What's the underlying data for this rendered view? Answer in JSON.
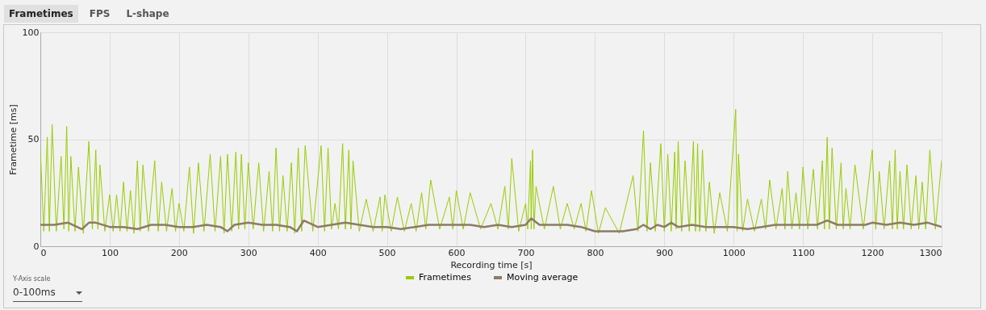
{
  "chart_data": {
    "type": "line",
    "xlabel": "Recording time [s]",
    "ylabel": "Frametime [ms]",
    "xlim": [
      0,
      1300
    ],
    "xticks": [
      0,
      100,
      200,
      300,
      400,
      500,
      600,
      700,
      800,
      900,
      1000,
      1100,
      1200,
      1300
    ],
    "ylim": [
      0,
      100
    ],
    "yticks": [
      0,
      50,
      100
    ],
    "grid": true,
    "legend": "bottom",
    "marker": "none",
    "line_style": "solid",
    "annotations": [
      "Frametimes",
      "FPS",
      "L-shape",
      "Y-Axis scale",
      "0-100ms"
    ],
    "series": [
      {
        "name": "Frametimes",
        "color": "#99cc00",
        "x": [
          0,
          5,
          10,
          13,
          17,
          23,
          30,
          34,
          38,
          41,
          44,
          50,
          55,
          62,
          70,
          75,
          80,
          83,
          86,
          93,
          100,
          105,
          110,
          115,
          120,
          125,
          130,
          135,
          140,
          144,
          148,
          156,
          165,
          170,
          175,
          182,
          190,
          195,
          200,
          207,
          215,
          221,
          228,
          236,
          245,
          252,
          260,
          265,
          270,
          276,
          282,
          286,
          290,
          295,
          300,
          307,
          315,
          322,
          330,
          335,
          340,
          345,
          350,
          356,
          362,
          367,
          372,
          377,
          382,
          393,
          405,
          410,
          415,
          420,
          425,
          430,
          436,
          440,
          445,
          448,
          451,
          460,
          470,
          480,
          490,
          493,
          497,
          506,
          515,
          525,
          535,
          542,
          550,
          556,
          563,
          576,
          590,
          595,
          600,
          610,
          620,
          635,
          650,
          660,
          670,
          675,
          680,
          690,
          700,
          703,
          707,
          708,
          710,
          712,
          715,
          727,
          740,
          750,
          760,
          770,
          780,
          787,
          795,
          805,
          815,
          835,
          855,
          862,
          870,
          875,
          880,
          887,
          895,
          900,
          905,
          910,
          915,
          917,
          920,
          925,
          930,
          936,
          942,
          945,
          948,
          951,
          955,
          960,
          965,
          972,
          980,
          991,
          1003,
          1005,
          1007,
          1013,
          1020,
          1030,
          1040,
          1046,
          1052,
          1061,
          1070,
          1074,
          1078,
          1084,
          1090,
          1095,
          1100,
          1107,
          1115,
          1121,
          1128,
          1131,
          1135,
          1138,
          1142,
          1148,
          1155,
          1158,
          1162,
          1168,
          1175,
          1187,
          1200,
          1205,
          1210,
          1217,
          1225,
          1229,
          1233,
          1236,
          1240,
          1245,
          1250,
          1256,
          1263,
          1267,
          1272,
          1277,
          1283,
          1291,
          1300
        ],
        "values": [
          45,
          7,
          51,
          7,
          57,
          7,
          42,
          8,
          56,
          7,
          42,
          7,
          37,
          6,
          49,
          8,
          45,
          8,
          38,
          7,
          24,
          7,
          24,
          7,
          30,
          7,
          26,
          6,
          40,
          7,
          38,
          7,
          40,
          7,
          30,
          7,
          27,
          7,
          20,
          7,
          37,
          6,
          39,
          7,
          43,
          7,
          42,
          6,
          43,
          7,
          44,
          8,
          43,
          8,
          39,
          8,
          39,
          7,
          35,
          7,
          46,
          7,
          33,
          7,
          39,
          6,
          46,
          7,
          47,
          7,
          47,
          7,
          46,
          8,
          20,
          8,
          48,
          8,
          45,
          8,
          40,
          7,
          22,
          7,
          23,
          7,
          24,
          7,
          23,
          7,
          20,
          7,
          25,
          8,
          31,
          8,
          23,
          8,
          26,
          8,
          25,
          8,
          20,
          8,
          28,
          8,
          41,
          7,
          20,
          8,
          40,
          8,
          45,
          8,
          28,
          8,
          28,
          8,
          20,
          8,
          20,
          7,
          26,
          6,
          18,
          6,
          33,
          7,
          54,
          7,
          39,
          7,
          48,
          7,
          43,
          7,
          44,
          8,
          49,
          7,
          40,
          7,
          49,
          7,
          48,
          7,
          45,
          7,
          30,
          6,
          25,
          7,
          64,
          7,
          43,
          7,
          22,
          7,
          22,
          8,
          31,
          8,
          27,
          8,
          35,
          8,
          25,
          8,
          37,
          8,
          36,
          8,
          40,
          8,
          51,
          8,
          46,
          8,
          39,
          8,
          27,
          8,
          38,
          8,
          45,
          8,
          35,
          8,
          40,
          8,
          45,
          8,
          35,
          8,
          38,
          8,
          33,
          8,
          30,
          8,
          45,
          8,
          40
        ]
      },
      {
        "name": "Moving average",
        "color": "#8c7b65",
        "x": [
          0,
          20,
          40,
          60,
          70,
          80,
          100,
          120,
          140,
          160,
          180,
          200,
          220,
          240,
          260,
          270,
          280,
          300,
          320,
          340,
          360,
          370,
          380,
          400,
          420,
          440,
          460,
          480,
          500,
          520,
          540,
          560,
          580,
          600,
          620,
          640,
          660,
          680,
          700,
          708,
          720,
          740,
          760,
          780,
          800,
          820,
          840,
          860,
          870,
          880,
          890,
          900,
          910,
          920,
          940,
          960,
          980,
          1000,
          1020,
          1040,
          1060,
          1080,
          1100,
          1120,
          1135,
          1150,
          1170,
          1190,
          1200,
          1220,
          1240,
          1260,
          1280,
          1300
        ],
        "values": [
          10,
          10,
          11,
          8,
          11,
          11,
          9,
          9,
          8,
          10,
          10,
          9,
          9,
          10,
          9,
          7,
          10,
          11,
          10,
          10,
          9,
          7,
          12,
          9,
          10,
          11,
          10,
          9,
          9,
          8,
          9,
          10,
          10,
          10,
          10,
          9,
          10,
          9,
          10,
          13,
          10,
          10,
          10,
          9,
          7,
          7,
          7,
          8,
          10,
          8,
          10,
          9,
          11,
          9,
          10,
          9,
          9,
          9,
          8,
          9,
          10,
          10,
          10,
          10,
          12,
          10,
          10,
          10,
          11,
          10,
          11,
          10,
          11,
          9
        ]
      }
    ]
  }
}
